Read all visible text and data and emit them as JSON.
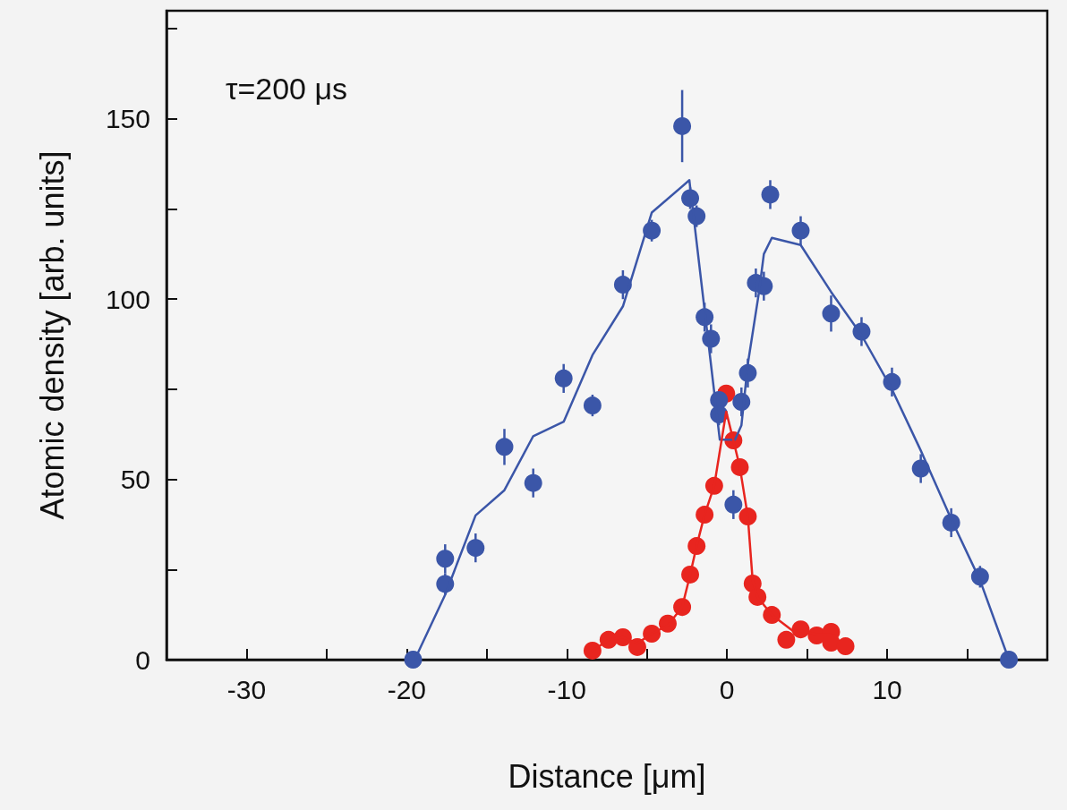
{
  "chart_data": {
    "type": "scatter",
    "xlabel": "Distance [μm]",
    "ylabel": "Atomic density [arb. units]",
    "annotations": [
      "τ=200 μs"
    ],
    "xlim": [
      -35,
      20
    ],
    "xticks": [
      -30,
      {
        "value": -25,
        "label": null
      },
      -20,
      {
        "value": -15,
        "label": null
      },
      -10,
      {
        "value": -5,
        "label": null
      },
      0,
      {
        "value": 5,
        "label": null
      },
      10,
      {
        "value": 15,
        "label": null
      }
    ],
    "ylim": [
      0,
      180
    ],
    "yticks": [
      0,
      {
        "value": 25,
        "label": null
      },
      50,
      {
        "value": 75,
        "label": null
      },
      100,
      {
        "value": 125,
        "label": null
      },
      150,
      {
        "value": 175,
        "label": null
      }
    ],
    "grid": false,
    "marker": "circle",
    "series": [
      {
        "color": "#3b56a8",
        "x": [
          -19.6,
          -17.6,
          -17.6,
          -15.7,
          -13.9,
          -12.1,
          -10.2,
          -8.4,
          -6.5,
          -4.7,
          -2.8,
          -2.3,
          -1.9,
          -1.4,
          -1.0,
          -0.5,
          -0.5,
          0.4,
          0.9,
          1.3,
          1.8,
          2.3,
          2.7,
          4.6,
          6.5,
          8.4,
          10.3,
          12.1,
          14,
          15.8,
          17.6
        ],
        "values": [
          0,
          28,
          21,
          31,
          59,
          49,
          78,
          70.5,
          104,
          119,
          148,
          128,
          123,
          95,
          89,
          72,
          68,
          43,
          71.5,
          79.5,
          104.5,
          103.6,
          129,
          119,
          96,
          91,
          77,
          53,
          38,
          23,
          0
        ],
        "errors": [
          null,
          4,
          3,
          4,
          5,
          4,
          4,
          3,
          4,
          3,
          10,
          3,
          3,
          4,
          4,
          3,
          3,
          4,
          4,
          4,
          4,
          4,
          4,
          4,
          5,
          4,
          4,
          4,
          4,
          3,
          null
        ]
      },
      {
        "type": "line",
        "color": "#3b56a8",
        "marker": "none",
        "x": [
          -19.5,
          -17.6,
          -15.7,
          -13.9,
          -12.1,
          -10.2,
          -8.4,
          -6.5,
          -4.7,
          -2.35,
          -2.3,
          -1.4,
          -0.45,
          0.5,
          0.9,
          1.3,
          2.0,
          2.3,
          2.8,
          4.6,
          6.5,
          8.4,
          10.3,
          12.1,
          14,
          15.8,
          17.6
        ],
        "values": [
          0,
          18,
          40,
          47,
          62,
          66,
          84.5,
          98,
          124,
          133,
          131,
          97,
          61,
          61,
          65,
          82,
          102,
          112.5,
          117,
          115,
          102,
          90,
          75,
          58,
          39,
          22,
          0
        ]
      },
      {
        "color": "#e8251f",
        "x": [
          -8.4,
          -7.4,
          -6.5,
          -5.6,
          -4.7,
          -3.7,
          -2.8,
          -2.3,
          -1.9,
          -1.4,
          -0.8,
          -0.05,
          0.4,
          0.8,
          1.3,
          1.6,
          1.9,
          2.8,
          3.7,
          4.6,
          5.6,
          6.5,
          6.5,
          7.4
        ],
        "values": [
          2.5,
          5.5,
          6.2,
          3.5,
          7.2,
          10,
          14.6,
          23.6,
          31.5,
          40.2,
          48.2,
          73.8,
          60.8,
          53.4,
          39.7,
          21.1,
          17.4,
          12.4,
          5.5,
          8.4,
          6.7,
          7.7,
          4.7,
          3.7
        ]
      },
      {
        "type": "line",
        "color": "#e8251f",
        "marker": "none",
        "x": [
          -8.4,
          -7.4,
          -6.5,
          -5.6,
          -4.7,
          -3.7,
          -2.8,
          -2.3,
          -1.9,
          -1.4,
          -0.8,
          -0.05,
          0.4,
          0.8,
          1.3,
          1.6,
          1.9,
          2.8,
          4.1,
          4.6,
          5.6,
          6.5
        ],
        "values": [
          2.5,
          5.5,
          6.2,
          4.5,
          7.2,
          9.5,
          14.6,
          23.6,
          31.5,
          40.2,
          48.2,
          68.8,
          60.8,
          53.4,
          39.7,
          22,
          17.4,
          12.4,
          8,
          8,
          7,
          7
        ]
      }
    ]
  }
}
